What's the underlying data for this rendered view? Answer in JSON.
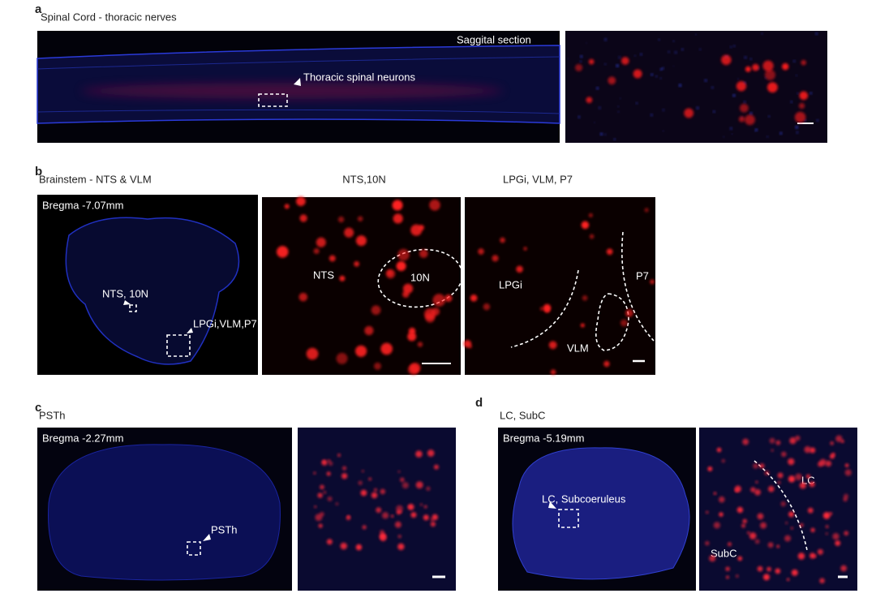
{
  "panel_a": {
    "letter": "a",
    "title": "Spinal Cord - thoracic nerves",
    "section_label": "Saggital section",
    "region_label": "Thoracic spinal neurons"
  },
  "panel_b": {
    "letter": "b",
    "title": "Brainstem - NTS & VLM",
    "bregma": "Bregma -7.07mm",
    "overview_labels": [
      "NTS, 10N",
      "LPGi,VLM,P7"
    ],
    "zoom_titles": [
      "NTS,10N",
      "LPGi, VLM, P7"
    ],
    "zoom1_labels": [
      "NTS",
      "10N"
    ],
    "zoom2_labels": [
      "LPGi",
      "P7",
      "VLM"
    ]
  },
  "panel_c": {
    "letter": "c",
    "title": "PSTh",
    "bregma": "Bregma -2.27mm",
    "region_label": "PSTh"
  },
  "panel_d": {
    "letter": "d",
    "title": "LC, SubC",
    "bregma": "Bregma -5.19mm",
    "region_label": "LC, Subcoeruleus",
    "zoom_labels": [
      "LC",
      "SubC"
    ]
  }
}
